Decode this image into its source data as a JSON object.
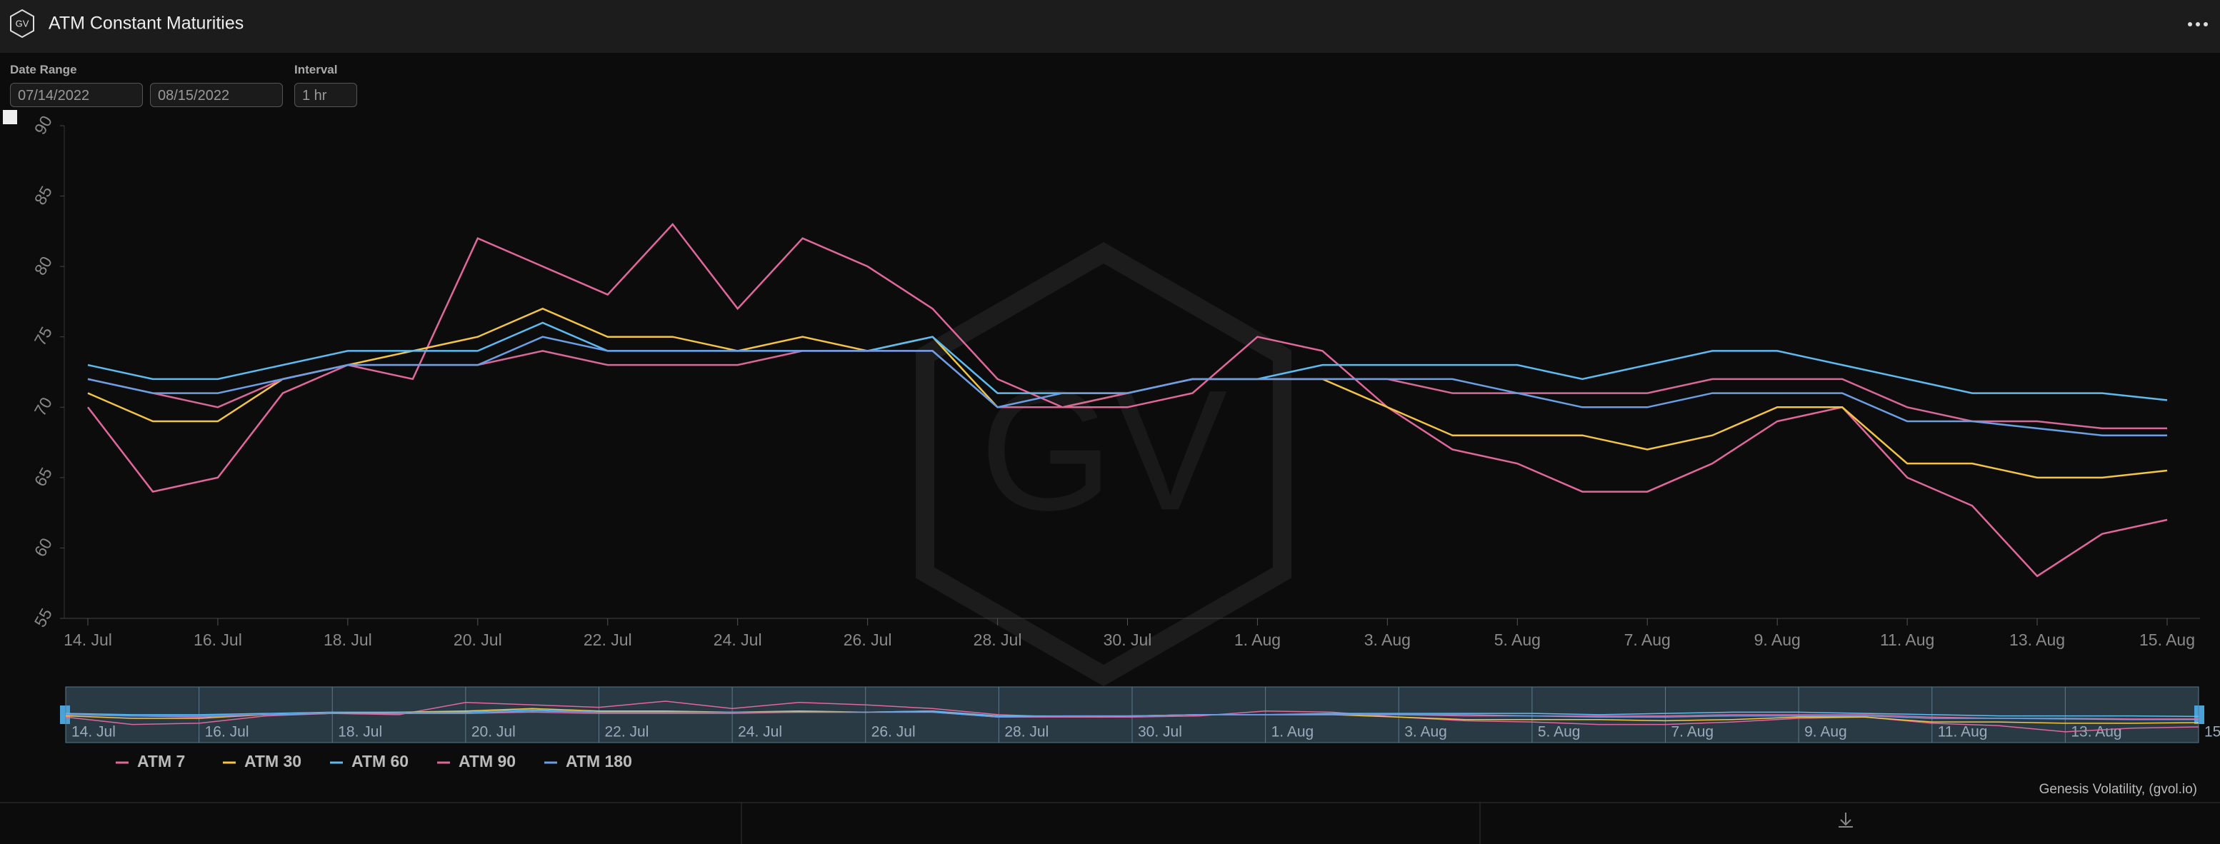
{
  "header": {
    "logo": "GV",
    "title": "ATM Constant Maturities"
  },
  "controls": {
    "date_range_label": "Date Range",
    "start_date": "07/14/2022",
    "end_date": "08/15/2022",
    "interval_label": "Interval",
    "interval": "1 hr"
  },
  "watermark": "GV",
  "credit": "Genesis Volatility, (gvol.io)",
  "chart_data": {
    "type": "line",
    "x": [
      "2022-07-14",
      "2022-07-15",
      "2022-07-16",
      "2022-07-17",
      "2022-07-18",
      "2022-07-19",
      "2022-07-20",
      "2022-07-21",
      "2022-07-22",
      "2022-07-23",
      "2022-07-24",
      "2022-07-25",
      "2022-07-26",
      "2022-07-27",
      "2022-07-28",
      "2022-07-29",
      "2022-07-30",
      "2022-07-31",
      "2022-08-01",
      "2022-08-02",
      "2022-08-03",
      "2022-08-04",
      "2022-08-05",
      "2022-08-06",
      "2022-08-07",
      "2022-08-08",
      "2022-08-09",
      "2022-08-10",
      "2022-08-11",
      "2022-08-12",
      "2022-08-13",
      "2022-08-14",
      "2022-08-15"
    ],
    "series": [
      {
        "name": "ATM 7",
        "color": "#e2679c",
        "values": [
          70,
          64,
          65,
          71,
          73,
          72,
          82,
          80,
          78,
          83,
          77,
          82,
          80,
          77,
          72,
          70,
          70,
          71,
          75,
          74,
          70,
          67,
          66,
          64,
          64,
          66,
          69,
          70,
          65,
          63,
          58,
          61,
          62
        ]
      },
      {
        "name": "ATM 30",
        "color": "#f4c542",
        "values": [
          71,
          69,
          69,
          72,
          73,
          74,
          75,
          77,
          75,
          75,
          74,
          75,
          74,
          75,
          70,
          70,
          71,
          72,
          72,
          72,
          70,
          68,
          68,
          68,
          67,
          68,
          70,
          70,
          66,
          66,
          65,
          65,
          65.5
        ]
      },
      {
        "name": "ATM 60",
        "color": "#5cbcf2",
        "values": [
          73,
          72,
          72,
          73,
          74,
          74,
          74,
          76,
          74,
          74,
          74,
          74,
          74,
          75,
          71,
          71,
          71,
          72,
          72,
          73,
          73,
          73,
          73,
          72,
          73,
          74,
          74,
          73,
          72,
          71,
          71,
          71,
          70.5
        ]
      },
      {
        "name": "ATM 90",
        "color": "#d9679a",
        "values": [
          72,
          71,
          70,
          72,
          73,
          73,
          73,
          74,
          73,
          73,
          73,
          74,
          74,
          74,
          70,
          70,
          71,
          72,
          72,
          72,
          72,
          71,
          71,
          71,
          71,
          72,
          72,
          72,
          70,
          69,
          69,
          68.5,
          68.5
        ]
      },
      {
        "name": "ATM 180",
        "color": "#6a9fe6",
        "values": [
          72,
          71,
          71,
          72,
          73,
          73,
          73,
          75,
          74,
          74,
          74,
          74,
          74,
          74,
          70,
          71,
          71,
          72,
          72,
          72,
          72,
          72,
          71,
          70,
          70,
          71,
          71,
          71,
          69,
          69,
          68.5,
          68,
          68
        ]
      }
    ],
    "xlim": [
      "2022-07-14",
      "2022-08-15"
    ],
    "xticks": [
      {
        "value": "2022-07-14",
        "label": "14. Jul"
      },
      {
        "value": "2022-07-16",
        "label": "16. Jul"
      },
      {
        "value": "2022-07-18",
        "label": "18. Jul"
      },
      {
        "value": "2022-07-20",
        "label": "20. Jul"
      },
      {
        "value": "2022-07-22",
        "label": "22. Jul"
      },
      {
        "value": "2022-07-24",
        "label": "24. Jul"
      },
      {
        "value": "2022-07-26",
        "label": "26. Jul"
      },
      {
        "value": "2022-07-28",
        "label": "28. Jul"
      },
      {
        "value": "2022-07-30",
        "label": "30. Jul"
      },
      {
        "value": "2022-08-01",
        "label": "1. Aug"
      },
      {
        "value": "2022-08-03",
        "label": "3. Aug"
      },
      {
        "value": "2022-08-05",
        "label": "5. Aug"
      },
      {
        "value": "2022-08-07",
        "label": "7. Aug"
      },
      {
        "value": "2022-08-09",
        "label": "9. Aug"
      },
      {
        "value": "2022-08-11",
        "label": "11. Aug"
      },
      {
        "value": "2022-08-13",
        "label": "13. Aug"
      },
      {
        "value": "2022-08-15",
        "label": "15. Aug"
      }
    ],
    "ylim": [
      55,
      90
    ],
    "yticks": [
      55,
      60,
      65,
      70,
      75,
      80,
      85,
      90
    ],
    "legend": "bottom-left"
  }
}
